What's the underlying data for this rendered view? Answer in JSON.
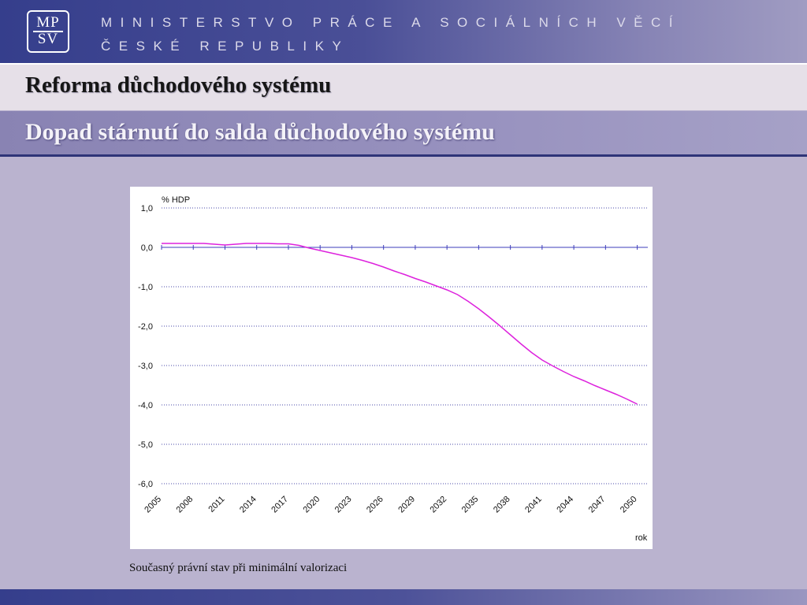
{
  "logo": {
    "line1": "MP",
    "line2": "SV"
  },
  "header": {
    "ministry_line1": "MINISTERSTVO PRÁCE A SOCIÁLNÍCH VĚCÍ",
    "ministry_line2": "ČESKÉ REPUBLIKY"
  },
  "title": "Reforma důchodového systému",
  "subtitle": "Dopad stárnutí do salda důchodového systému",
  "caption": "Současný právní stav při minimální valorizaci",
  "colors": {
    "line": "#dd22dd",
    "grid": "#4a4aa8",
    "zero_axis": "#3d3dbb"
  },
  "chart_data": {
    "type": "line",
    "title": "",
    "ylabel": "% HDP",
    "xlabel": "rok",
    "ylim": [
      -6,
      1
    ],
    "yticks": [
      "1,0",
      "0,0",
      "-1,0",
      "-2,0",
      "-3,0",
      "-4,0",
      "-5,0",
      "-6,0"
    ],
    "ytick_values": [
      1,
      0,
      -1,
      -2,
      -3,
      -4,
      -5,
      -6
    ],
    "xticks": [
      "2005",
      "2008",
      "2011",
      "2014",
      "2017",
      "2020",
      "2023",
      "2026",
      "2029",
      "2032",
      "2035",
      "2038",
      "2041",
      "2044",
      "2047",
      "2050"
    ],
    "grid": true,
    "x": [
      2005,
      2006,
      2007,
      2008,
      2009,
      2010,
      2011,
      2012,
      2013,
      2014,
      2015,
      2016,
      2017,
      2018,
      2019,
      2020,
      2021,
      2022,
      2023,
      2024,
      2025,
      2026,
      2027,
      2028,
      2029,
      2030,
      2031,
      2032,
      2033,
      2034,
      2035,
      2036,
      2037,
      2038,
      2039,
      2040,
      2041,
      2042,
      2043,
      2044,
      2045,
      2046,
      2047,
      2048,
      2049,
      2050
    ],
    "y": [
      0.1,
      0.1,
      0.1,
      0.1,
      0.1,
      0.08,
      0.06,
      0.08,
      0.1,
      0.1,
      0.1,
      0.09,
      0.09,
      0.05,
      -0.02,
      -0.08,
      -0.14,
      -0.2,
      -0.26,
      -0.33,
      -0.41,
      -0.5,
      -0.6,
      -0.69,
      -0.79,
      -0.88,
      -0.98,
      -1.08,
      -1.2,
      -1.37,
      -1.56,
      -1.77,
      -1.99,
      -2.22,
      -2.45,
      -2.67,
      -2.86,
      -3.01,
      -3.15,
      -3.28,
      -3.39,
      -3.51,
      -3.62,
      -3.73,
      -3.85,
      -3.98
    ]
  }
}
